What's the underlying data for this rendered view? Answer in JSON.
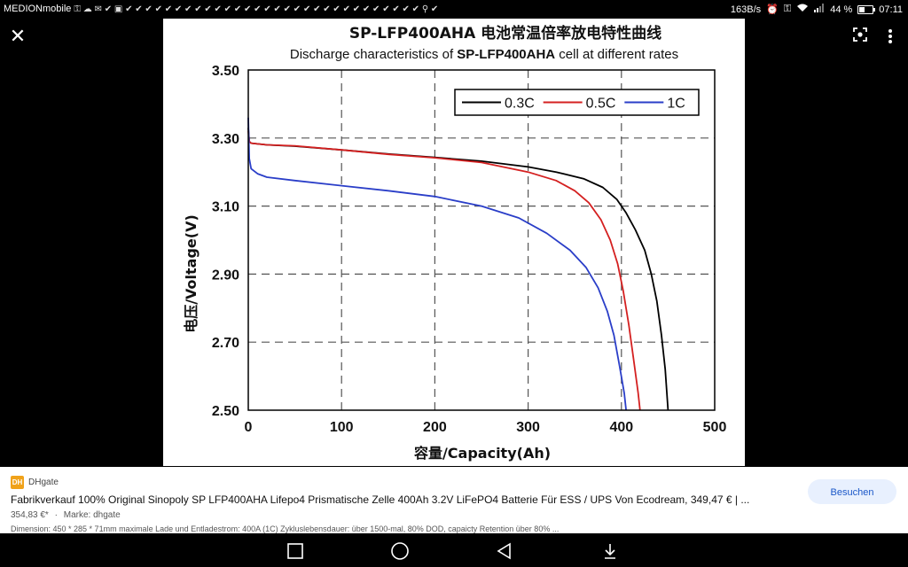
{
  "status_bar": {
    "carrier": "MEDIONmobile",
    "notifications": "⚿ ☁ ✉ ✔ ▣ ✔ ✔ ✔ ✔ ✔ ✔ ✔ ✔ ✔ ✔ ✔ ✔ ✔ ✔ ✔ ✔ ✔ ✔ ✔ ✔ ✔ ✔ ✔ ✔ ✔ ✔ ✔ ✔ ✔ ✔ ⚲ ✔",
    "net_speed": "163B/s",
    "battery": "44 %",
    "time": "07:11"
  },
  "viewer": {
    "close_icon": "close-icon",
    "lens_icon": "lens-icon",
    "menu_icon": "more-vert-icon"
  },
  "chart_data": {
    "type": "line",
    "title": "SP-LFP400AHA 电池常温倍率放电特性曲线",
    "subtitle_prefix": "Discharge characteristics of ",
    "subtitle_bold": "SP-LFP400AHA",
    "subtitle_suffix": " cell at different rates",
    "xlabel": "容量/Capacity(Ah)",
    "ylabel": "电压/Voltage(V)",
    "xlim": [
      0,
      500
    ],
    "ylim": [
      2.5,
      3.5
    ],
    "x_ticks": [
      "0",
      "100",
      "200",
      "300",
      "400",
      "500"
    ],
    "y_ticks": [
      "3.50",
      "3.30",
      "3.10",
      "2.90",
      "2.70",
      "2.50"
    ],
    "grid": true,
    "legend_position": "top-right",
    "series": [
      {
        "name": "0.3C",
        "color": "#000000",
        "points": [
          [
            0,
            3.33
          ],
          [
            1,
            3.29
          ],
          [
            3,
            3.285
          ],
          [
            20,
            3.28
          ],
          [
            50,
            3.276
          ],
          [
            100,
            3.265
          ],
          [
            150,
            3.253
          ],
          [
            200,
            3.243
          ],
          [
            250,
            3.232
          ],
          [
            300,
            3.215
          ],
          [
            330,
            3.2
          ],
          [
            360,
            3.18
          ],
          [
            380,
            3.155
          ],
          [
            395,
            3.12
          ],
          [
            405,
            3.08
          ],
          [
            415,
            3.03
          ],
          [
            425,
            2.97
          ],
          [
            432,
            2.9
          ],
          [
            438,
            2.82
          ],
          [
            443,
            2.72
          ],
          [
            447,
            2.62
          ],
          [
            450,
            2.5
          ]
        ]
      },
      {
        "name": "0.5C",
        "color": "#d42020",
        "points": [
          [
            0,
            3.32
          ],
          [
            1,
            3.29
          ],
          [
            3,
            3.285
          ],
          [
            20,
            3.28
          ],
          [
            50,
            3.277
          ],
          [
            100,
            3.265
          ],
          [
            150,
            3.252
          ],
          [
            200,
            3.242
          ],
          [
            250,
            3.228
          ],
          [
            300,
            3.2
          ],
          [
            330,
            3.175
          ],
          [
            350,
            3.145
          ],
          [
            365,
            3.11
          ],
          [
            378,
            3.06
          ],
          [
            388,
            3.0
          ],
          [
            396,
            2.93
          ],
          [
            402,
            2.85
          ],
          [
            408,
            2.75
          ],
          [
            413,
            2.65
          ],
          [
            418,
            2.55
          ],
          [
            420,
            2.5
          ]
        ]
      },
      {
        "name": "1C",
        "color": "#2a3ec8",
        "points": [
          [
            0,
            3.36
          ],
          [
            1,
            3.24
          ],
          [
            3,
            3.21
          ],
          [
            10,
            3.195
          ],
          [
            20,
            3.185
          ],
          [
            50,
            3.175
          ],
          [
            100,
            3.16
          ],
          [
            150,
            3.145
          ],
          [
            200,
            3.128
          ],
          [
            250,
            3.1
          ],
          [
            290,
            3.065
          ],
          [
            320,
            3.02
          ],
          [
            345,
            2.97
          ],
          [
            362,
            2.92
          ],
          [
            375,
            2.86
          ],
          [
            385,
            2.79
          ],
          [
            392,
            2.72
          ],
          [
            398,
            2.63
          ],
          [
            403,
            2.55
          ],
          [
            405,
            2.5
          ]
        ]
      }
    ]
  },
  "card": {
    "source_logo": "DH",
    "source_name": "DHgate",
    "title": "Fabrikverkauf 100% Original Sinopoly SP LFP400AHA Lifepo4 Prismatische Zelle 400Ah 3.2V LiFePO4 Batterie Für ESS / UPS Von Ecodream, 349,47 € | ...",
    "price": "354,83 €*",
    "separator": "·",
    "brand": "Marke: dhgate",
    "description": "Dimension: 450 * 285 * 71mm maximale Lade und Entladestrom: 400A (1C) Zykluslebensdauer: über 1500-mal, 80% DOD, capaicty Retention über 80% ...",
    "visit_label": "Besuchen"
  },
  "nav": {
    "recents_icon": "square-recents-icon",
    "home_icon": "circle-home-icon",
    "back_icon": "triangle-back-icon",
    "download_icon": "download-icon"
  }
}
